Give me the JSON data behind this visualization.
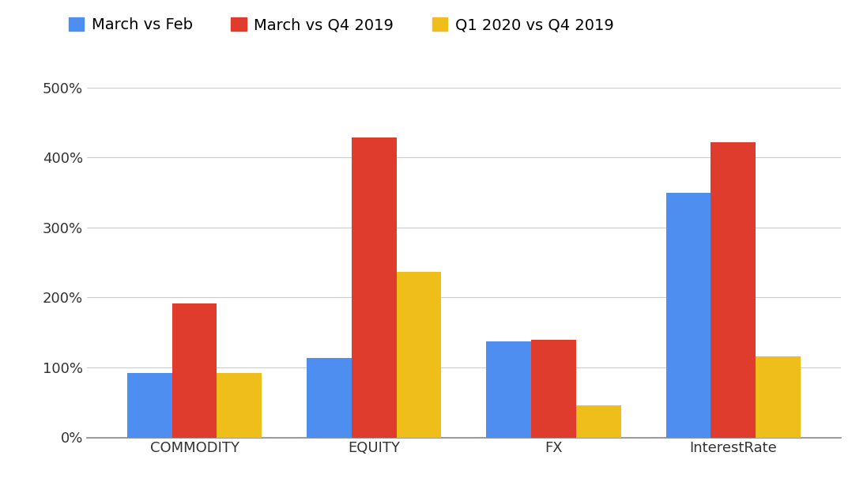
{
  "categories": [
    "COMMODITY",
    "EQUITY",
    "FX",
    "InterestRate"
  ],
  "series": [
    {
      "label": "March vs Feb",
      "color": "#4d8ef0",
      "values": [
        0.92,
        1.13,
        1.37,
        3.5
      ]
    },
    {
      "label": "March vs Q4 2019",
      "color": "#e03c2e",
      "values": [
        1.91,
        4.28,
        1.4,
        4.22
      ]
    },
    {
      "label": "Q1 2020 vs Q4 2019",
      "color": "#f0be1a",
      "values": [
        0.92,
        2.37,
        0.46,
        1.16
      ]
    }
  ],
  "ylim": [
    0,
    5.0
  ],
  "yticks": [
    0,
    1,
    2,
    3,
    4,
    5
  ],
  "ytick_labels": [
    "0%",
    "100%",
    "200%",
    "300%",
    "400%",
    "500%"
  ],
  "background_color": "#ffffff",
  "grid_color": "#cccccc",
  "bar_width": 0.25,
  "legend_fontsize": 14,
  "tick_fontsize": 13
}
